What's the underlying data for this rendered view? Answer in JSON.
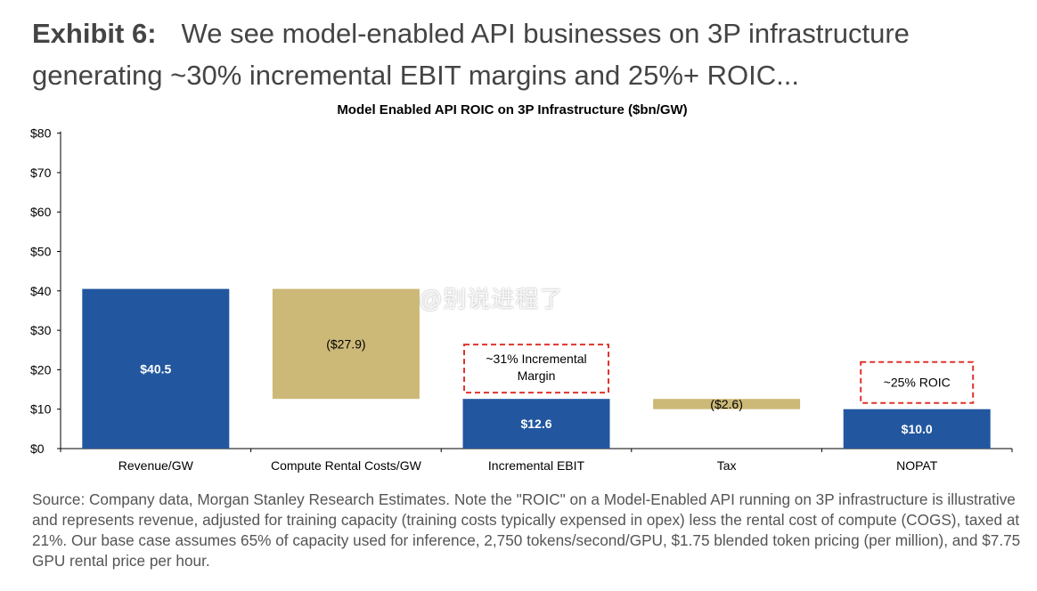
{
  "exhibit": {
    "label": "Exhibit 6:",
    "title": "We see model-enabled API businesses on 3P infrastructure generating ~30% incremental EBIT margins and 25%+ ROIC..."
  },
  "chart_data": {
    "type": "bar",
    "subtype": "waterfall",
    "title": "Model Enabled API ROIC on 3P Infrastructure ($bn/GW)",
    "categories": [
      "Revenue/GW",
      "Compute Rental Costs/GW",
      "Incremental EBIT",
      "Tax",
      "NOPAT"
    ],
    "bars": [
      {
        "category": "Revenue/GW",
        "start": 0,
        "end": 40.5,
        "label": "$40.5",
        "kind": "total",
        "color": "#2257a0"
      },
      {
        "category": "Compute Rental Costs/GW",
        "start": 40.5,
        "end": 12.6,
        "label": "($27.9)",
        "kind": "decrease",
        "color": "#cdb977"
      },
      {
        "category": "Incremental EBIT",
        "start": 0,
        "end": 12.6,
        "label": "$12.6",
        "kind": "total",
        "color": "#2257a0"
      },
      {
        "category": "Tax",
        "start": 12.6,
        "end": 10.0,
        "label": "($2.6)",
        "kind": "decrease",
        "color": "#cdb977"
      },
      {
        "category": "NOPAT",
        "start": 0,
        "end": 10.0,
        "label": "$10.0",
        "kind": "total",
        "color": "#2257a0"
      }
    ],
    "annotations": [
      {
        "category": "Incremental EBIT",
        "text": "~31% Incremental Margin"
      },
      {
        "category": "NOPAT",
        "text": "~25% ROIC"
      }
    ],
    "y_ticks": [
      "$0",
      "$10",
      "$20",
      "$30",
      "$40",
      "$50",
      "$60",
      "$70",
      "$80"
    ],
    "ylim": [
      0,
      80
    ],
    "grid": false,
    "legend": "none"
  },
  "source": "Source: Company data, Morgan Stanley Research Estimates. Note the \"ROIC\" on a Model-Enabled API running on 3P infrastructure is illustrative and represents revenue, adjusted for training capacity (training costs typically expensed in opex) less the rental cost of compute (COGS), taxed at 21%. Our base case assumes 65% of capacity used for inference, 2,750 tokens/second/GPU, $1.75 blended token pricing (per million), and $7.75 GPU rental price per hour.",
  "watermark": "@别说进程了"
}
